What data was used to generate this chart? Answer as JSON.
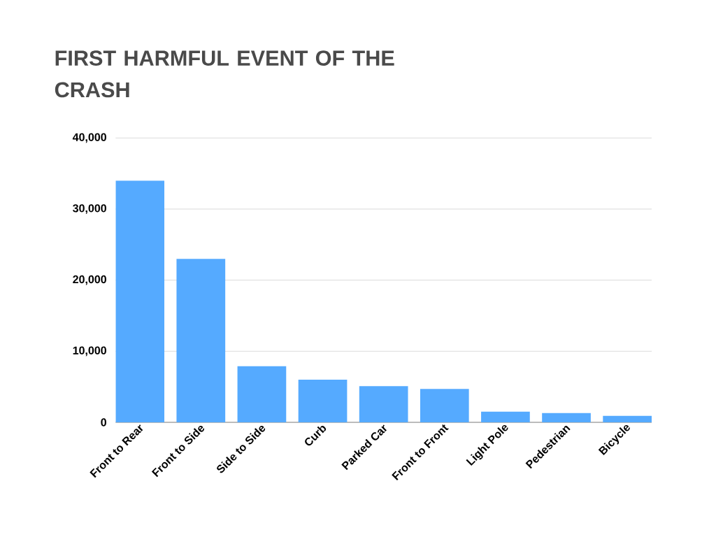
{
  "chart_data": {
    "type": "bar",
    "title": "FIRST HARMFUL EVENT OF THE CRASH",
    "categories": [
      "Front to Rear",
      "Front to Side",
      "Side to Side",
      "Curb",
      "Parked Car",
      "Front to Front",
      "Light Pole",
      "Pedestrian",
      "Bicycle"
    ],
    "values": [
      34000,
      23000,
      7900,
      6000,
      5100,
      4700,
      1500,
      1300,
      900
    ],
    "color": "#55aaff",
    "ylim": [
      0,
      40000
    ],
    "yticks": [
      {
        "value": 0,
        "label": "0"
      },
      {
        "value": 10000,
        "label": "10,000"
      },
      {
        "value": 20000,
        "label": "20,000"
      },
      {
        "value": 30000,
        "label": "30,000"
      },
      {
        "value": 40000,
        "label": "40,000"
      }
    ],
    "grid": "y"
  }
}
